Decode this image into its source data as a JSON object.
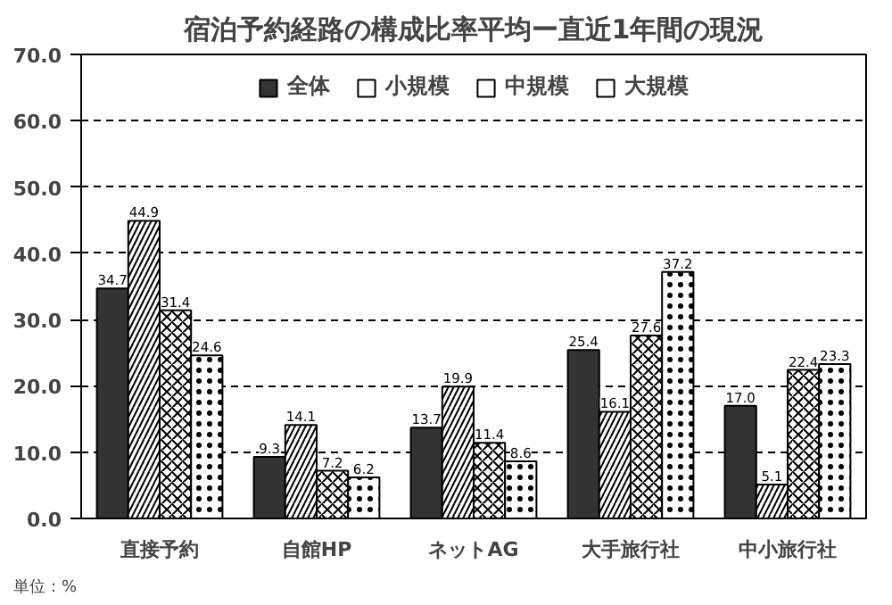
{
  "chart_data": {
    "type": "bar",
    "title": "宿泊予約経路の構成比率平均ー直近1年間の現況",
    "categories": [
      "直接予約",
      "自館HP",
      "ネットAG",
      "大手旅行社",
      "中小旅行社"
    ],
    "series": [
      {
        "name": "全体",
        "color": "#333333",
        "values": [
          34.7,
          9.3,
          13.7,
          25.4,
          17.0
        ],
        "value_labels": [
          "34.7",
          "9.3",
          "13.7",
          "25.4",
          "17.0"
        ]
      },
      {
        "name": "小規模",
        "color": "#ffffff",
        "values": [
          44.9,
          14.1,
          19.9,
          16.1,
          5.1
        ],
        "value_labels": [
          "44.9",
          "14.1",
          "19.9",
          "16.1",
          "5.1"
        ]
      },
      {
        "name": "中規模",
        "color": "#ffffff",
        "values": [
          31.4,
          7.2,
          11.4,
          27.6,
          22.4
        ],
        "value_labels": [
          "31.4",
          "7.2",
          "11.4",
          "27.6",
          "22.4"
        ]
      },
      {
        "name": "大規模",
        "color": "#ffffff",
        "values": [
          24.6,
          6.2,
          8.6,
          37.2,
          23.3
        ],
        "value_labels": [
          "24.6",
          "6.2",
          "8.6",
          "37.2",
          "23.3"
        ]
      }
    ],
    "ylim": [
      0,
      70
    ],
    "yticks": [
      {
        "value": 0,
        "label": "0.0"
      },
      {
        "value": 10,
        "label": "10.0"
      },
      {
        "value": 20,
        "label": "20.0"
      },
      {
        "value": 30,
        "label": "30.0"
      },
      {
        "value": 40,
        "label": "40.0"
      },
      {
        "value": 50,
        "label": "50.0"
      },
      {
        "value": 60,
        "label": "60.0"
      },
      {
        "value": 70,
        "label": "70.0"
      }
    ],
    "grid": "y",
    "legend": "top",
    "annotations": [
      "単位：%"
    ]
  }
}
